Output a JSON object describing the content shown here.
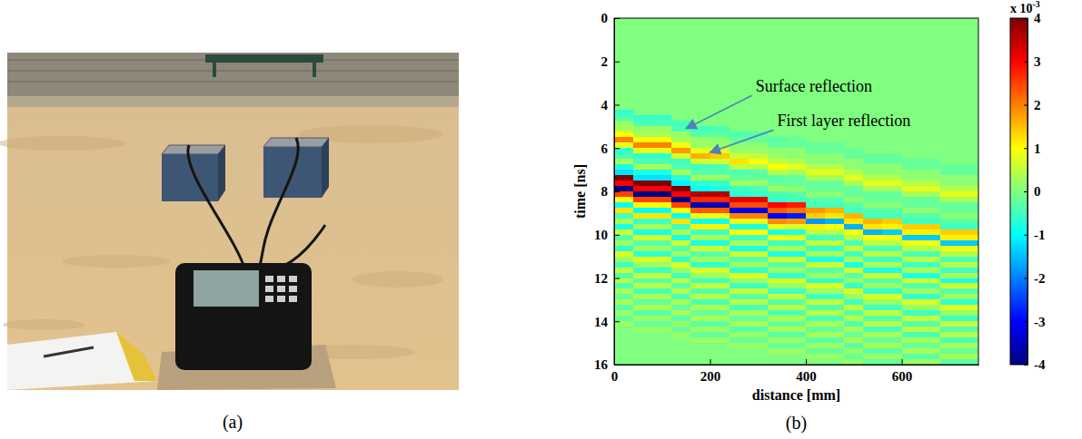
{
  "photo_panel": {
    "label": "(a)"
  },
  "chart_data": {
    "type": "heatmap",
    "panel_label": "(b)",
    "x_label": "distance [mm]",
    "y_label": "time [ns]",
    "xlim": [
      0,
      760
    ],
    "ylim": [
      16,
      0
    ],
    "xticks": [
      0,
      200,
      400,
      600
    ],
    "yticks": [
      0,
      2,
      4,
      6,
      8,
      10,
      12,
      14,
      16
    ],
    "x": [
      20,
      60,
      100,
      140,
      180,
      220,
      260,
      300,
      340,
      380,
      420,
      460,
      500,
      540,
      580,
      620,
      660,
      700,
      740
    ],
    "y": [
      0.125,
      0.375,
      0.625,
      0.875,
      1.125,
      1.375,
      1.625,
      1.875,
      2.125,
      2.375,
      2.625,
      2.875,
      3.125,
      3.375,
      3.625,
      3.875,
      4.125,
      4.375,
      4.625,
      4.875,
      5.125,
      5.375,
      5.625,
      5.875,
      6.125,
      6.375,
      6.625,
      6.875,
      7.125,
      7.375,
      7.625,
      7.875,
      8.125,
      8.375,
      8.625,
      8.875,
      9.125,
      9.375,
      9.625,
      9.875,
      10.125,
      10.375,
      10.625,
      10.875,
      11.125,
      11.375,
      11.625,
      11.875,
      12.125,
      12.375,
      12.625,
      12.875,
      13.125,
      13.375,
      13.625,
      13.875,
      14.125,
      14.375,
      14.625,
      14.875,
      15.125,
      15.375,
      15.625,
      15.875
    ],
    "values": [
      [
        0,
        0,
        0,
        0,
        0,
        0,
        0,
        0,
        0,
        0,
        0,
        0,
        0,
        0,
        0,
        0,
        0,
        -0.6,
        -0.4,
        0.2,
        0.3,
        1,
        2,
        0.8,
        -0.6,
        -0.4,
        0.3,
        -0.8,
        -1.2,
        4,
        3,
        -4,
        2.5,
        1,
        -1,
        1.2,
        -0.5,
        0.3,
        -0.8,
        0.6,
        -0.3,
        0.2,
        -0.6,
        0.7,
        0.2,
        -0.5,
        0.5,
        -0.3,
        0.4,
        -0.4,
        0.3,
        -0.2,
        0.3,
        -0.3,
        0.2,
        -0.2,
        0.2,
        0,
        0,
        0,
        0,
        0,
        0,
        0
      ],
      [
        0,
        0,
        0,
        0,
        0,
        0,
        0,
        0,
        0,
        0,
        0,
        0,
        0,
        0,
        0,
        0,
        0,
        0,
        -0.6,
        -0.4,
        0.2,
        0.3,
        1,
        2,
        0.8,
        -0.6,
        -0.4,
        0.3,
        -0.8,
        -1.2,
        4,
        3,
        -4,
        2.5,
        1,
        -1,
        1.2,
        -0.5,
        0.3,
        -0.8,
        0.6,
        -0.3,
        0.2,
        -0.6,
        0.7,
        0.2,
        -0.5,
        0.5,
        -0.3,
        0.4,
        -0.4,
        0.3,
        -0.2,
        0.3,
        -0.3,
        0.2,
        -0.2,
        0.2,
        0,
        0,
        0,
        0,
        0,
        0
      ],
      [
        0,
        0,
        0,
        0,
        0,
        0,
        0,
        0,
        0,
        0,
        0,
        0,
        0,
        0,
        0,
        0,
        0,
        0,
        -0.6,
        -0.4,
        0.2,
        0.3,
        1,
        2,
        0.8,
        -0.6,
        -0.4,
        0.3,
        -0.8,
        -1.2,
        4,
        3,
        -4,
        2.5,
        1,
        -1,
        1.2,
        -0.5,
        0.3,
        -0.8,
        0.6,
        -0.3,
        0.2,
        -0.6,
        0.7,
        0.2,
        -0.5,
        0.5,
        -0.3,
        0.4,
        -0.4,
        0.3,
        -0.2,
        0.3,
        -0.3,
        0.2,
        -0.2,
        0.2,
        0,
        0,
        0,
        0,
        0,
        0
      ],
      [
        0,
        0,
        0,
        0,
        0,
        0,
        0,
        0,
        0,
        0,
        0,
        0,
        0,
        0,
        0,
        0,
        0,
        0,
        0,
        -0.5,
        -0.4,
        0.2,
        0.3,
        0.9,
        1.8,
        0.7,
        -0.5,
        -0.4,
        0.3,
        -0.7,
        -1.1,
        4,
        3,
        -4,
        2.5,
        1,
        -1,
        1.2,
        -0.5,
        0.3,
        -0.8,
        0.6,
        -0.3,
        0.2,
        -0.6,
        0.7,
        0.2,
        -0.5,
        0.5,
        -0.3,
        0.4,
        -0.4,
        0.3,
        -0.2,
        0.3,
        -0.3,
        0.2,
        -0.2,
        0.2,
        0,
        0,
        0,
        0,
        0
      ],
      [
        0,
        0,
        0,
        0,
        0,
        0,
        0,
        0,
        0,
        0,
        0,
        0,
        0,
        0,
        0,
        0,
        0,
        0,
        0,
        0,
        -0.5,
        -0.3,
        0.2,
        0.2,
        0.8,
        1.6,
        0.6,
        -0.5,
        -0.3,
        0.2,
        -0.6,
        -1,
        3.6,
        2.7,
        -3.6,
        2.3,
        0.9,
        -0.9,
        1.1,
        -0.5,
        0.3,
        -0.8,
        0.6,
        -0.3,
        0.2,
        -0.6,
        0.7,
        0.2,
        -0.5,
        0.5,
        -0.3,
        0.4,
        -0.4,
        0.3,
        -0.2,
        0.3,
        -0.3,
        0.2,
        -0.2,
        0.2,
        0,
        0,
        0,
        0
      ],
      [
        0,
        0,
        0,
        0,
        0,
        0,
        0,
        0,
        0,
        0,
        0,
        0,
        0,
        0,
        0,
        0,
        0,
        0,
        0,
        0,
        -0.4,
        -0.3,
        0.1,
        0.2,
        0.7,
        1.4,
        0.6,
        -0.4,
        -0.3,
        0.2,
        -0.6,
        -0.8,
        3.6,
        2.7,
        -3.6,
        2.3,
        0.9,
        -0.9,
        1.1,
        -0.5,
        0.3,
        -0.8,
        0.6,
        -0.3,
        0.2,
        -0.6,
        0.7,
        0.2,
        -0.5,
        0.5,
        -0.3,
        0.4,
        -0.4,
        0.3,
        -0.2,
        0.3,
        -0.3,
        0.2,
        -0.2,
        0.2,
        0,
        0,
        0,
        0
      ],
      [
        0,
        0,
        0,
        0,
        0,
        0,
        0,
        0,
        0,
        0,
        0,
        0,
        0,
        0,
        0,
        0,
        0,
        0,
        0,
        0,
        0,
        -0.4,
        -0.2,
        0.1,
        0.2,
        0.6,
        1.2,
        0.5,
        -0.4,
        -0.2,
        0.2,
        -0.5,
        -0.7,
        3.2,
        2.4,
        -3.2,
        2,
        0.8,
        -0.8,
        1,
        -0.5,
        0.3,
        -0.8,
        0.6,
        -0.3,
        0.2,
        -0.6,
        0.7,
        0.2,
        -0.5,
        0.5,
        -0.3,
        0.4,
        -0.4,
        0.3,
        -0.2,
        0.3,
        -0.3,
        0.2,
        -0.2,
        0.2,
        0,
        0,
        0
      ],
      [
        0,
        0,
        0,
        0,
        0,
        0,
        0,
        0,
        0,
        0,
        0,
        0,
        0,
        0,
        0,
        0,
        0,
        0,
        0,
        0,
        0,
        -0.3,
        -0.2,
        0.1,
        0.2,
        0.5,
        1,
        0.4,
        -0.3,
        -0.2,
        0.2,
        -0.4,
        -0.6,
        3.2,
        2.4,
        -3.2,
        2,
        0.8,
        -0.8,
        1,
        -0.5,
        0.3,
        -0.8,
        0.6,
        -0.3,
        0.2,
        -0.6,
        0.7,
        0.2,
        -0.5,
        0.5,
        -0.3,
        0.4,
        -0.4,
        0.3,
        -0.2,
        0.3,
        -0.3,
        0.2,
        -0.2,
        0.2,
        0,
        0,
        0
      ],
      [
        0,
        0,
        0,
        0,
        0,
        0,
        0,
        0,
        0,
        0,
        0,
        0,
        0,
        0,
        0,
        0,
        0,
        0,
        0,
        0,
        0,
        0,
        -0.3,
        -0.2,
        0.1,
        0.2,
        0.5,
        1,
        0.4,
        -0.3,
        -0.2,
        0.2,
        -0.4,
        -0.6,
        3,
        2.3,
        -3,
        1.9,
        0.8,
        -0.8,
        0.9,
        -0.5,
        0.3,
        -0.8,
        0.6,
        -0.3,
        0.2,
        -0.6,
        0.7,
        0.2,
        -0.5,
        0.5,
        -0.3,
        0.4,
        -0.4,
        0.3,
        -0.2,
        0.3,
        -0.3,
        0.2,
        -0.2,
        0.2,
        0,
        0
      ],
      [
        0,
        0,
        0,
        0,
        0,
        0,
        0,
        0,
        0,
        0,
        0,
        0,
        0,
        0,
        0,
        0,
        0,
        0,
        0,
        0,
        0,
        0,
        -0.2,
        -0.2,
        0.1,
        0.1,
        0.4,
        0.8,
        0.3,
        -0.2,
        -0.2,
        0.1,
        -0.3,
        -0.5,
        2.8,
        2.1,
        -2.8,
        1.8,
        0.7,
        -0.7,
        0.8,
        -0.5,
        0.3,
        -0.8,
        0.6,
        -0.3,
        0.2,
        -0.6,
        0.7,
        0.2,
        -0.5,
        0.5,
        -0.3,
        0.4,
        -0.4,
        0.3,
        -0.2,
        0.3,
        -0.3,
        0.2,
        -0.2,
        0.2,
        0,
        0
      ],
      [
        0,
        0,
        0,
        0,
        0,
        0,
        0,
        0,
        0,
        0,
        0,
        0,
        0,
        0,
        0,
        0,
        0,
        0,
        0,
        0,
        0,
        0,
        0,
        -0.2,
        -0.2,
        0.1,
        0.1,
        0.4,
        0.8,
        0.3,
        -0.2,
        -0.2,
        0.1,
        -0.3,
        -0.5,
        1.8,
        1.4,
        -1.8,
        1.1,
        0.5,
        -0.5,
        0.5,
        -0.5,
        0.3,
        -0.8,
        0.6,
        -0.3,
        0.2,
        -0.6,
        0.7,
        0.2,
        -0.5,
        0.5,
        -0.3,
        0.4,
        -0.4,
        0.3,
        -0.2,
        0.3,
        -0.3,
        0.2,
        -0.2,
        0.2,
        0
      ],
      [
        0,
        0,
        0,
        0,
        0,
        0,
        0,
        0,
        0,
        0,
        0,
        0,
        0,
        0,
        0,
        0,
        0,
        0,
        0,
        0,
        0,
        0,
        0,
        -0.2,
        -0.2,
        0.1,
        0.1,
        0.4,
        0.8,
        0.3,
        -0.2,
        -0.2,
        0.1,
        -0.3,
        -0.5,
        1.6,
        1.2,
        -1.6,
        1,
        0.4,
        -0.4,
        0.5,
        -0.5,
        0.3,
        -0.8,
        0.6,
        -0.3,
        0.2,
        -0.6,
        0.7,
        0.2,
        -0.5,
        0.5,
        -0.3,
        0.4,
        -0.4,
        0.3,
        -0.2,
        0.3,
        -0.3,
        0.2,
        -0.2,
        0.2,
        0
      ],
      [
        0,
        0,
        0,
        0,
        0,
        0,
        0,
        0,
        0,
        0,
        0,
        0,
        0,
        0,
        0,
        0,
        0,
        0,
        0,
        0,
        0,
        0,
        0,
        0,
        -0.2,
        -0.2,
        0.1,
        0.1,
        0.4,
        0.8,
        0.3,
        -0.2,
        -0.2,
        0.1,
        -0.3,
        -0.5,
        1.6,
        1.2,
        -1.6,
        1,
        0.4,
        -0.4,
        0.5,
        -0.5,
        0.3,
        -0.8,
        0.6,
        -0.3,
        0.2,
        -0.6,
        0.7,
        0.2,
        -0.5,
        0.5,
        -0.3,
        0.4,
        -0.4,
        0.3,
        -0.2,
        0.3,
        -0.3,
        0.2,
        -0.2,
        0.2
      ],
      [
        0,
        0,
        0,
        0,
        0,
        0,
        0,
        0,
        0,
        0,
        0,
        0,
        0,
        0,
        0,
        0,
        0,
        0,
        0,
        0,
        0,
        0,
        0,
        0,
        0,
        -0.2,
        -0.2,
        0.1,
        0.1,
        0.4,
        0.8,
        0.3,
        -0.2,
        -0.2,
        0.1,
        -0.3,
        -0.5,
        1.6,
        1.2,
        -1.6,
        1,
        0.4,
        -0.4,
        0.5,
        -0.5,
        0.3,
        -0.8,
        0.6,
        -0.3,
        0.2,
        -0.6,
        0.7,
        0.2,
        -0.5,
        0.5,
        -0.3,
        0.4,
        -0.4,
        0.3,
        -0.2,
        0.3,
        -0.3,
        0.2,
        -0.2
      ],
      [
        0,
        0,
        0,
        0,
        0,
        0,
        0,
        0,
        0,
        0,
        0,
        0,
        0,
        0,
        0,
        0,
        0,
        0,
        0,
        0,
        0,
        0,
        0,
        0,
        0,
        -0.2,
        -0.2,
        0.1,
        0.1,
        0.4,
        0.8,
        0.3,
        -0.2,
        -0.2,
        0.1,
        -0.3,
        -0.5,
        1.4,
        1.1,
        -1.4,
        0.9,
        0.4,
        -0.4,
        0.4,
        -0.5,
        0.3,
        -0.8,
        0.6,
        -0.3,
        0.2,
        -0.6,
        0.7,
        0.2,
        -0.5,
        0.5,
        -0.3,
        0.4,
        -0.4,
        0.3,
        -0.2,
        0.3,
        -0.3,
        0.2,
        -0.2
      ],
      [
        0,
        0,
        0,
        0,
        0,
        0,
        0,
        0,
        0,
        0,
        0,
        0,
        0,
        0,
        0,
        0,
        0,
        0,
        0,
        0,
        0,
        0,
        0,
        0,
        0,
        0,
        -0.2,
        -0.2,
        0.1,
        0.1,
        0.4,
        0.8,
        0.3,
        -0.2,
        -0.2,
        0.1,
        -0.3,
        -0.5,
        1.4,
        1.1,
        -1.4,
        0.9,
        0.4,
        -0.4,
        0.4,
        -0.5,
        0.3,
        -0.8,
        0.6,
        -0.3,
        0.2,
        -0.6,
        0.7,
        0.2,
        -0.5,
        0.5,
        -0.3,
        0.4,
        -0.4,
        0.3,
        -0.2,
        0.3,
        -0.3,
        0.2
      ],
      [
        0,
        0,
        0,
        0,
        0,
        0,
        0,
        0,
        0,
        0,
        0,
        0,
        0,
        0,
        0,
        0,
        0,
        0,
        0,
        0,
        0,
        0,
        0,
        0,
        0,
        0,
        -0.2,
        -0.2,
        0.1,
        0.1,
        0.4,
        0.8,
        0.3,
        -0.2,
        -0.2,
        0.1,
        -0.3,
        -0.5,
        1.4,
        1.1,
        -1.4,
        0.9,
        0.4,
        -0.4,
        0.4,
        -0.5,
        0.3,
        -0.8,
        0.6,
        -0.3,
        0.2,
        -0.6,
        0.7,
        0.2,
        -0.5,
        0.5,
        -0.3,
        0.4,
        -0.4,
        0.3,
        -0.2,
        0.3,
        -0.3,
        0.2
      ],
      [
        0,
        0,
        0,
        0,
        0,
        0,
        0,
        0,
        0,
        0,
        0,
        0,
        0,
        0,
        0,
        0,
        0,
        0,
        0,
        0,
        0,
        0,
        0,
        0,
        0,
        0,
        0,
        -0.2,
        -0.2,
        0.1,
        0.1,
        0.4,
        0.8,
        0.3,
        -0.2,
        -0.2,
        0.1,
        -0.3,
        -0.5,
        1.4,
        1.1,
        -1.4,
        0.9,
        0.4,
        -0.4,
        0.4,
        -0.5,
        0.3,
        -0.8,
        0.6,
        -0.3,
        0.2,
        -0.6,
        0.7,
        0.2,
        -0.5,
        0.5,
        -0.3,
        0.4,
        -0.4,
        0.3,
        -0.2,
        0.3,
        -0.3
      ],
      [
        0,
        0,
        0,
        0,
        0,
        0,
        0,
        0,
        0,
        0,
        0,
        0,
        0,
        0,
        0,
        0,
        0,
        0,
        0,
        0,
        0,
        0,
        0,
        0,
        0,
        0,
        0,
        -0.2,
        -0.2,
        0.1,
        0.1,
        0.4,
        0.8,
        0.3,
        -0.2,
        -0.2,
        0.1,
        -0.3,
        -0.5,
        1.4,
        1.1,
        -1.4,
        0.9,
        0.4,
        -0.4,
        0.4,
        -0.5,
        0.3,
        -0.8,
        0.6,
        -0.3,
        0.2,
        -0.6,
        0.7,
        0.2,
        -0.5,
        0.5,
        -0.3,
        0.4,
        -0.4,
        0.3,
        -0.2,
        0.3,
        -0.3
      ]
    ],
    "colorbar": {
      "lim": [
        -4,
        4
      ],
      "ticks": [
        -4,
        -3,
        -2,
        -1,
        0,
        1,
        2,
        3,
        4
      ],
      "factor": "x 10",
      "factor_exponent": "-3"
    },
    "annotations": [
      {
        "text": "Surface reflection",
        "xy": [
          150,
          5.1
        ],
        "xytext": [
          295,
          3.4
        ]
      },
      {
        "text": "First layer reflection",
        "xy": [
          200,
          6.2
        ],
        "xytext": [
          340,
          5.0
        ]
      }
    ]
  }
}
